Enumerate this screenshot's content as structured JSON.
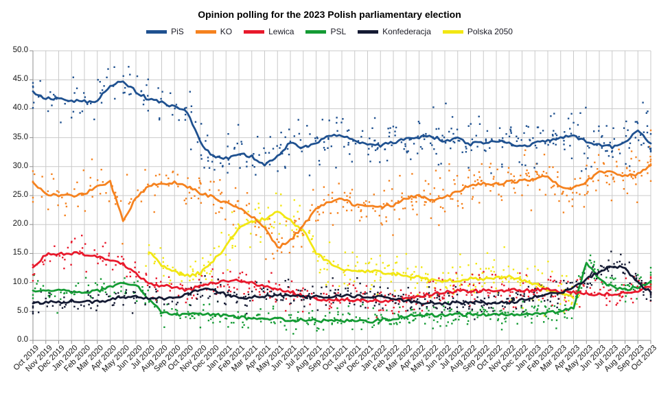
{
  "title": "Opinion polling for the 2023 Polish parliamentary election",
  "chart_data": {
    "type": "scatter",
    "description": "Poll scatter points with smoothed trend lines, values in percent",
    "grid": true,
    "legend_position": "top",
    "x_axis": {
      "labels": [
        "Oct 2019",
        "Nov 2019",
        "Dec 2019",
        "Jan 2020",
        "Feb 2020",
        "Mar 2020",
        "Apr 2020",
        "May 2020",
        "Jun 2020",
        "Jul 2020",
        "Aug 2020",
        "Sep 2020",
        "Oct 2020",
        "Nov 2020",
        "Dec 2020",
        "Jan 2021",
        "Feb 2021",
        "Mar 2021",
        "Apr 2021",
        "May 2021",
        "Jun 2021",
        "Jul 2021",
        "Aug 2021",
        "Sep 2021",
        "Oct 2021",
        "Nov 2021",
        "Dec 2021",
        "Jan 2022",
        "Feb 2022",
        "Mar 2022",
        "Apr 2022",
        "May 2022",
        "Jun 2022",
        "Jul 2022",
        "Aug 2022",
        "Sep 2022",
        "Oct 2022",
        "Nov 2022",
        "Dec 2022",
        "Jan 2023",
        "Feb 2023",
        "Mar 2023",
        "Apr 2023",
        "May 2023",
        "Jun 2023",
        "Jul 2023",
        "Aug 2023",
        "Sep 2023",
        "Oct 2023"
      ]
    },
    "y_axis": {
      "min": 0,
      "max": 50,
      "step": 5,
      "tick_labels": [
        "0.0",
        "5.0",
        "10.0",
        "15.0",
        "20.0",
        "25.0",
        "30.0",
        "35.0",
        "40.0",
        "45.0",
        "50.0"
      ]
    },
    "series": [
      {
        "name": "PiS",
        "color": "#1f5190",
        "scatter_sigma": 2.2,
        "values": [
          43.0,
          41.8,
          41.7,
          41.4,
          41.2,
          41.3,
          44.0,
          44.9,
          42.9,
          41.6,
          41.2,
          40.3,
          39.5,
          34.2,
          31.8,
          31.4,
          32.3,
          31.8,
          30.4,
          31.8,
          34.2,
          33.2,
          33.9,
          35.5,
          35.3,
          34.6,
          33.8,
          33.6,
          34.2,
          34.8,
          35.0,
          35.2,
          34.4,
          34.8,
          33.9,
          34.2,
          34.4,
          34.0,
          33.6,
          34.0,
          34.5,
          35.0,
          35.2,
          34.4,
          33.8,
          33.4,
          34.3,
          36.2,
          34.0
        ]
      },
      {
        "name": "KO",
        "color": "#f5821f",
        "scatter_sigma": 1.9,
        "values": [
          27.3,
          25.1,
          25.0,
          24.9,
          25.3,
          26.6,
          27.4,
          20.8,
          24.5,
          26.8,
          26.9,
          27.3,
          26.5,
          25.5,
          24.7,
          23.7,
          22.7,
          21.5,
          19.6,
          15.9,
          17.3,
          19.8,
          22.8,
          23.9,
          24.4,
          23.4,
          23.0,
          22.9,
          23.3,
          24.6,
          24.9,
          24.3,
          24.6,
          25.7,
          26.7,
          27.2,
          27.0,
          27.4,
          27.5,
          27.9,
          28.3,
          26.6,
          26.2,
          27.5,
          29.2,
          29.0,
          28.4,
          28.7,
          30.2
        ]
      },
      {
        "name": "Lewica",
        "color": "#e8192c",
        "scatter_sigma": 1.4,
        "values": [
          12.6,
          14.8,
          15.0,
          15.0,
          14.9,
          14.3,
          13.9,
          13.2,
          11.4,
          9.8,
          9.4,
          9.2,
          8.6,
          9.4,
          10.0,
          10.2,
          10.3,
          9.9,
          9.4,
          8.7,
          8.4,
          7.6,
          7.1,
          7.0,
          7.0,
          7.0,
          6.9,
          6.8,
          7.0,
          7.1,
          7.6,
          8.0,
          8.3,
          8.5,
          8.5,
          8.6,
          8.6,
          8.7,
          8.6,
          8.7,
          8.8,
          8.4,
          8.3,
          8.2,
          7.9,
          8.0,
          8.3,
          8.6,
          9.2
        ]
      },
      {
        "name": "PSL",
        "color": "#149b34",
        "scatter_sigma": 1.1,
        "values": [
          8.6,
          8.8,
          8.6,
          8.4,
          8.3,
          8.5,
          9.3,
          10.1,
          9.6,
          7.0,
          4.9,
          4.4,
          4.5,
          4.5,
          4.4,
          4.2,
          3.9,
          4.0,
          3.8,
          3.7,
          3.5,
          3.5,
          3.4,
          3.3,
          3.4,
          3.3,
          3.2,
          3.5,
          3.8,
          4.2,
          4.3,
          4.4,
          4.3,
          4.4,
          4.5,
          4.4,
          4.5,
          4.6,
          4.5,
          4.6,
          4.7,
          5.0,
          5.6,
          13.5,
          10.5,
          9.2,
          8.8,
          9.2,
          10.2
        ]
      },
      {
        "name": "Konfederacja",
        "color": "#141a33",
        "scatter_sigma": 1.1,
        "values": [
          6.4,
          6.6,
          6.6,
          6.8,
          6.6,
          6.7,
          7.0,
          7.5,
          7.6,
          7.3,
          7.2,
          7.3,
          8.0,
          8.8,
          8.6,
          7.9,
          7.5,
          7.4,
          7.7,
          7.8,
          7.7,
          7.6,
          7.5,
          7.6,
          7.8,
          7.7,
          7.6,
          7.5,
          7.3,
          6.9,
          6.4,
          6.5,
          6.4,
          6.5,
          6.6,
          6.5,
          6.4,
          6.5,
          7.0,
          7.5,
          8.0,
          8.3,
          9.0,
          10.5,
          12.0,
          12.9,
          12.4,
          10.0,
          8.3
        ]
      },
      {
        "name": "Polska 2050",
        "color": "#f2e713",
        "scatter_sigma": 1.9,
        "values": [
          null,
          null,
          null,
          null,
          null,
          null,
          null,
          null,
          null,
          15.2,
          13.0,
          11.8,
          11.2,
          11.6,
          13.8,
          16.2,
          19.3,
          20.4,
          21.0,
          22.2,
          20.6,
          19.0,
          15.1,
          13.5,
          12.2,
          11.9,
          12.0,
          11.8,
          11.5,
          11.3,
          10.8,
          10.4,
          10.3,
          10.4,
          10.6,
          10.5,
          10.9,
          11.0,
          10.4,
          9.6,
          8.9,
          8.0,
          7.3,
          null,
          null,
          null,
          null,
          null,
          null
        ]
      }
    ]
  }
}
